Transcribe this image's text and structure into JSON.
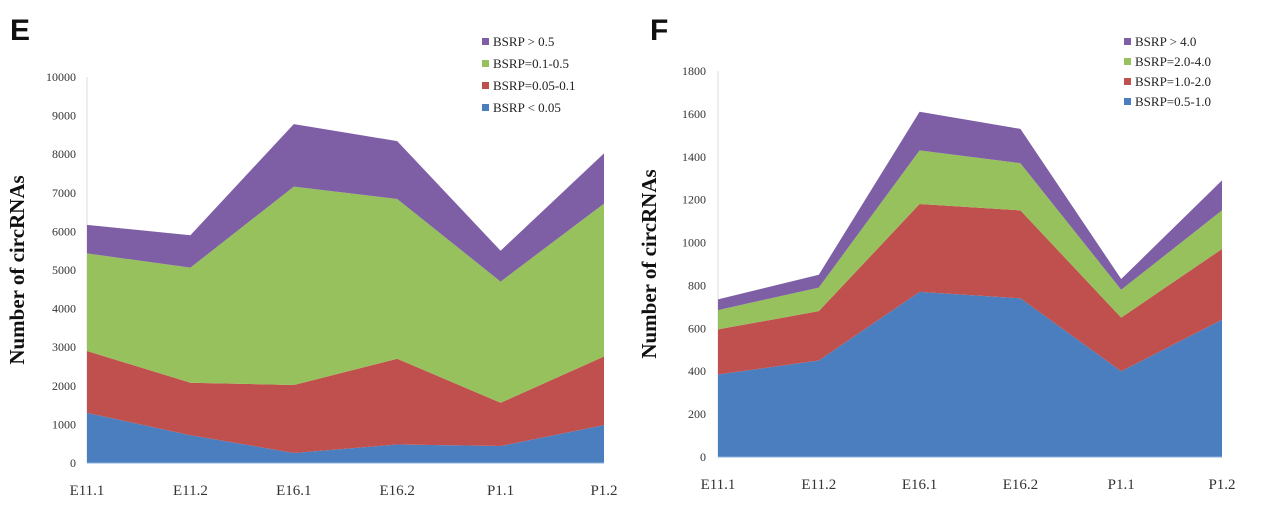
{
  "chart_data": [
    {
      "panel": "E",
      "type": "area",
      "stacked": true,
      "title": "",
      "xlabel": "",
      "ylabel": "Number of circRNAs",
      "categories": [
        "E11.1",
        "E11.2",
        "E16.1",
        "E16.2",
        "P1.1",
        "P1.2"
      ],
      "ylim": [
        0,
        10000
      ],
      "yticks": [
        "0",
        "1000",
        "2000",
        "3000",
        "4000",
        "5000",
        "6000",
        "7000",
        "8000",
        "9000",
        "10000"
      ],
      "grid": false,
      "legend_position": "top-right",
      "series": [
        {
          "name": "BSRP < 0.05",
          "color": "#4a7ebf",
          "values": [
            1300,
            720,
            260,
            480,
            440,
            980
          ]
        },
        {
          "name": "BSRP=0.05-0.1",
          "color": "#c0504d",
          "values": [
            1600,
            1360,
            1760,
            2220,
            1120,
            1780
          ]
        },
        {
          "name": "BSRP=0.1-0.5",
          "color": "#97c15c",
          "values": [
            2530,
            2980,
            5140,
            4140,
            3140,
            3960
          ]
        },
        {
          "name": "BSRP > 0.5",
          "color": "#7e5fa6",
          "values": [
            740,
            840,
            1620,
            1500,
            800,
            1300
          ]
        }
      ]
    },
    {
      "panel": "F",
      "type": "area",
      "stacked": true,
      "title": "",
      "xlabel": "",
      "ylabel": "Number of circRNAs",
      "categories": [
        "E11.1",
        "E11.2",
        "E16.1",
        "E16.2",
        "P1.1",
        "P1.2"
      ],
      "ylim": [
        0,
        1800
      ],
      "yticks": [
        "0",
        "200",
        "400",
        "600",
        "800",
        "1000",
        "1200",
        "1400",
        "1600",
        "1800"
      ],
      "grid": false,
      "legend_position": "top-right",
      "series": [
        {
          "name": "BSRP=0.5-1.0",
          "color": "#4a7ebf",
          "values": [
            385,
            450,
            770,
            740,
            400,
            640
          ]
        },
        {
          "name": "BSRP=1.0-2.0",
          "color": "#c0504d",
          "values": [
            210,
            230,
            410,
            410,
            250,
            330
          ]
        },
        {
          "name": "BSRP=2.0-4.0",
          "color": "#97c15c",
          "values": [
            90,
            110,
            250,
            220,
            130,
            180
          ]
        },
        {
          "name": "BSRP > 4.0",
          "color": "#7e5fa6",
          "values": [
            50,
            60,
            180,
            160,
            50,
            140
          ]
        }
      ]
    }
  ],
  "panels": {
    "e_letter": "E",
    "f_letter": "F"
  }
}
